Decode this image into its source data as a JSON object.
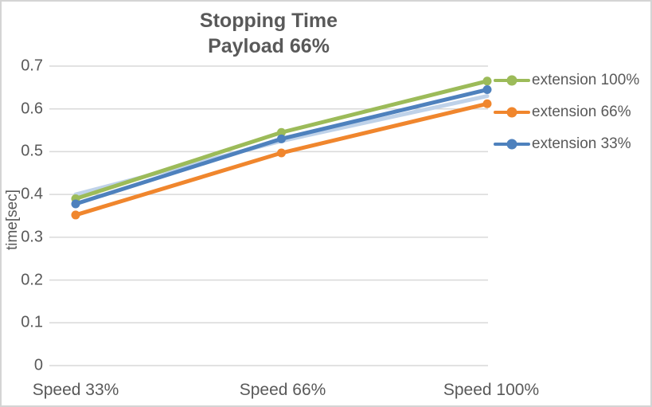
{
  "chart": {
    "title_line1": "Stopping Time",
    "title_line2": "Payload 66%",
    "y_axis_label": "time[sec]"
  },
  "chart_data": {
    "type": "line",
    "title": "Stopping Time — Payload 66%",
    "categories": [
      "Speed 33%",
      "Speed 66%",
      "Speed 100%"
    ],
    "series": [
      {
        "name": "extension 100%",
        "color": "#9CBB59",
        "values": [
          0.39,
          0.545,
          0.665
        ],
        "markers": true,
        "legend": true
      },
      {
        "name": "extension 66%",
        "color": "#F0862D",
        "values": [
          0.352,
          0.497,
          0.612
        ],
        "markers": true,
        "legend": true
      },
      {
        "name": "extension 33%",
        "color": "#4E81BD",
        "values": [
          0.378,
          0.53,
          0.645
        ],
        "markers": true,
        "legend": true
      },
      {
        "name": "unlabeled light series",
        "color": "#BFD2E9",
        "values": [
          0.4,
          0.525,
          0.63
        ],
        "markers": false,
        "legend": false
      }
    ],
    "draw_order": [
      3,
      0,
      1,
      2
    ],
    "xlabel": "",
    "ylabel": "time[sec]",
    "ylim": [
      0,
      0.7
    ],
    "y_ticks": [
      "0.7",
      "0.6",
      "0.5",
      "0.4",
      "0.3",
      "0.2",
      "0.1",
      "0"
    ],
    "grid": true,
    "grid_color": "#D9D9D9",
    "text_color": "#595959",
    "legend_position": "right"
  }
}
